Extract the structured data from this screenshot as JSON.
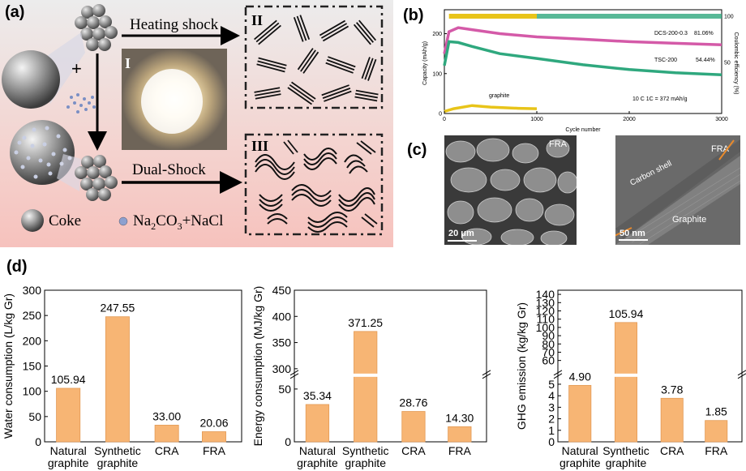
{
  "panel_a": {
    "label": "(a)",
    "heating": "Heating shock",
    "dual": "Dual-Shock",
    "roman1": "I",
    "roman2": "II",
    "roman3": "III",
    "plus": "+",
    "legend_coke": "Coke",
    "legend_salt_parts": [
      "Na",
      "2",
      "CO",
      "3",
      "+NaCl"
    ]
  },
  "panel_b": {
    "label": "(b)",
    "ylabel_left": "Capacity (mAh/g)",
    "ylabel_right": "Coulombic efficiency (%)",
    "xlabel": "Cycle number",
    "xticks": [
      "0",
      "1000",
      "2000",
      "3000"
    ],
    "yticks_left": [
      "0",
      "100",
      "200"
    ],
    "yticks_right": [
      "50",
      "100"
    ],
    "series_labels": [
      "DCS-200-0.3",
      "TSC-200",
      "graphite"
    ],
    "retention": [
      "81.06%",
      "54.44%"
    ],
    "rate": "10 C  1C = 372 mAh/g",
    "colors": {
      "dcs": "#d45aa8",
      "tsc": "#2fa87e",
      "graphite": "#e8c419"
    }
  },
  "panel_c": {
    "label": "(c)",
    "sem_label": "FRA",
    "sem_scale": "20 μm",
    "tem_fra": "FRA",
    "tem_shell": "Carbon shell",
    "tem_graphite": "Graphite",
    "tem_scale": "50 nm"
  },
  "panel_d": {
    "label": "(d)",
    "categories": [
      [
        "Natural",
        "graphite"
      ],
      [
        "Synthetic",
        "graphite"
      ],
      [
        "CRA"
      ],
      [
        "FRA"
      ]
    ]
  },
  "chart_data": [
    {
      "type": "bar",
      "categories": [
        "Natural graphite",
        "Synthetic graphite",
        "CRA",
        "FRA"
      ],
      "values": [
        105.94,
        247.55,
        33.0,
        20.06
      ],
      "value_labels": [
        "105.94",
        "247.55",
        "33.00",
        "20.06"
      ],
      "ylabel": "Water consumption (L/kg Gr)",
      "ylim": [
        0,
        300
      ],
      "yticks": [
        "0",
        "50",
        "100",
        "150",
        "200",
        "250",
        "300"
      ]
    },
    {
      "type": "bar",
      "categories": [
        "Natural graphite",
        "Synthetic graphite",
        "CRA",
        "FRA"
      ],
      "values": [
        35.34,
        371.25,
        28.76,
        14.3
      ],
      "value_labels": [
        "35.34",
        "371.25",
        "28.76",
        "14.30"
      ],
      "ylabel": "Energy consumption (MJ/kg Gr)",
      "broken_axis": {
        "lower": [
          0,
          60
        ],
        "upper": [
          300,
          450
        ]
      },
      "yticks": [
        "0",
        "50",
        "300",
        "350",
        "400",
        "450"
      ]
    },
    {
      "type": "bar",
      "categories": [
        "Natural graphite",
        "Synthetic graphite",
        "CRA",
        "FRA"
      ],
      "values": [
        4.9,
        105.94,
        3.78,
        1.85
      ],
      "value_labels": [
        "4.90",
        "105.94",
        "3.78",
        "1.85"
      ],
      "ylabel": "GHG emission (kg/kg Gr)",
      "broken_axis": {
        "lower": [
          0,
          5.5
        ],
        "upper": [
          50,
          145
        ]
      },
      "yticks": [
        "0",
        "1",
        "2",
        "3",
        "4",
        "5",
        "60",
        "70",
        "80",
        "90",
        "100",
        "110",
        "120",
        "130",
        "140"
      ]
    },
    {
      "type": "line",
      "title": "",
      "xlabel": "Cycle number",
      "ylabel": "Capacity (mAh/g)",
      "xlim": [
        0,
        3000
      ],
      "ylim": [
        0,
        260
      ],
      "series": [
        {
          "name": "DCS-200-0.3",
          "x": [
            0,
            50,
            150,
            300,
            600,
            1000,
            1500,
            2000,
            2500,
            3000
          ],
          "y": [
            150,
            205,
            215,
            210,
            200,
            192,
            186,
            180,
            176,
            172
          ]
        },
        {
          "name": "TSC-200",
          "x": [
            0,
            50,
            150,
            300,
            600,
            1000,
            1500,
            2000,
            2500,
            3000
          ],
          "y": [
            120,
            180,
            178,
            168,
            150,
            138,
            122,
            110,
            102,
            97
          ]
        },
        {
          "name": "graphite",
          "x": [
            0,
            100,
            300,
            500,
            800,
            1000
          ],
          "y": [
            5,
            12,
            20,
            16,
            13,
            12
          ]
        }
      ]
    }
  ]
}
